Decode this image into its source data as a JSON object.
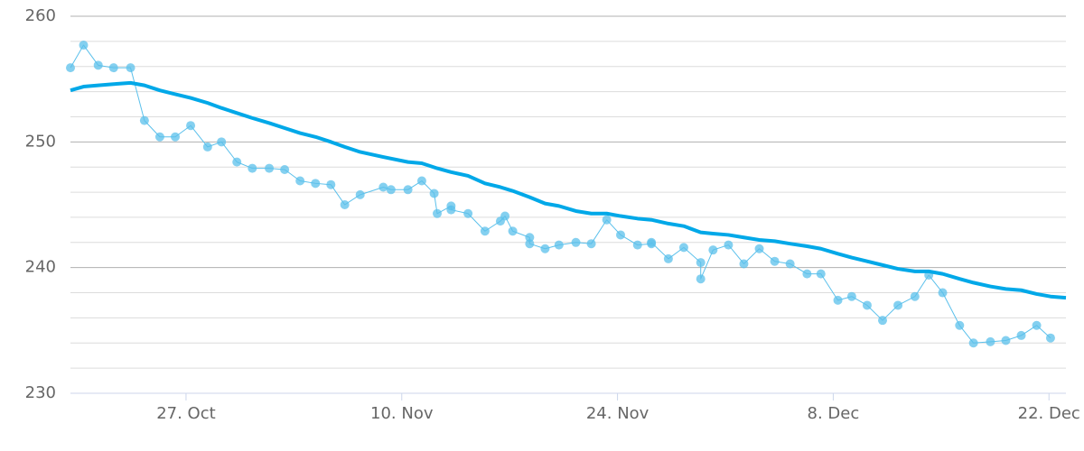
{
  "chart_data": {
    "type": "line",
    "xlim": [
      19.5,
      84.1
    ],
    "xticks": [
      {
        "value": 27,
        "label": "27. Oct"
      },
      {
        "value": 41,
        "label": "10. Nov"
      },
      {
        "value": 55,
        "label": "24. Nov"
      },
      {
        "value": 69,
        "label": "8. Dec"
      },
      {
        "value": 83,
        "label": "22. Dec"
      }
    ],
    "ylim": [
      230,
      260
    ],
    "yticks": [
      230,
      240,
      250,
      260
    ],
    "yminorticks": [
      232,
      234,
      236,
      238,
      242,
      244,
      246,
      248,
      252,
      254,
      256,
      258
    ],
    "grid": true,
    "series": [
      {
        "color": "#5bc0eb",
        "line_width": 1,
        "markers": true,
        "x": [
          19.5,
          20.35,
          21.3,
          22.3,
          23.4,
          24.3,
          25.3,
          26.3,
          27.3,
          28.4,
          29.3,
          30.3,
          31.3,
          32.4,
          33.4,
          34.4,
          35.4,
          36.4,
          37.3,
          38.3,
          39.8,
          40.3,
          41.4,
          42.3,
          43.1,
          43.3,
          44.2,
          44.2,
          45.3,
          46.4,
          47.4,
          47.7,
          48.2,
          49.3,
          49.3,
          50.3,
          51.2,
          52.3,
          53.3,
          54.3,
          55.2,
          56.3,
          57.2,
          57.2,
          58.3,
          59.3,
          60.4,
          60.4,
          61.2,
          62.2,
          63.2,
          64.2,
          65.2,
          66.2,
          67.3,
          68.2,
          69.3,
          70.2,
          71.2,
          72.2,
          73.2,
          74.3,
          75.2,
          76.1,
          77.2,
          78.1,
          79.2,
          80.2,
          81.2,
          82.2,
          83.1
        ],
        "values": [
          255.9,
          257.7,
          256.1,
          255.9,
          255.9,
          251.7,
          250.4,
          250.4,
          251.3,
          249.6,
          250.0,
          248.4,
          247.9,
          247.9,
          247.8,
          246.9,
          246.7,
          246.6,
          245.0,
          245.8,
          246.4,
          246.2,
          246.2,
          246.9,
          245.9,
          244.3,
          244.9,
          244.6,
          244.3,
          242.9,
          243.7,
          244.1,
          242.9,
          242.4,
          241.9,
          241.5,
          241.8,
          242.0,
          241.9,
          243.8,
          242.6,
          241.8,
          241.9,
          242.0,
          240.7,
          241.6,
          240.4,
          239.1,
          241.4,
          241.8,
          240.3,
          241.5,
          240.5,
          240.3,
          239.5,
          239.5,
          237.4,
          237.7,
          237.0,
          235.8,
          237.0,
          237.7,
          239.4,
          238.0,
          235.4,
          234.0,
          234.1,
          234.2,
          234.6,
          235.4,
          234.4
        ]
      },
      {
        "color": "#00a8e8",
        "line_width": 4,
        "markers": false,
        "x": [
          19.5,
          20.35,
          21.3,
          22.3,
          23.4,
          24.3,
          25.3,
          26.3,
          27.3,
          28.4,
          29.3,
          30.3,
          31.3,
          32.4,
          33.4,
          34.4,
          35.4,
          36.4,
          37.3,
          38.3,
          39.8,
          41.4,
          42.3,
          43.3,
          44.2,
          45.3,
          46.4,
          47.4,
          48.2,
          49.3,
          50.3,
          51.2,
          52.3,
          53.3,
          54.3,
          55.2,
          56.3,
          57.2,
          58.3,
          59.3,
          60.4,
          61.2,
          62.2,
          63.2,
          64.2,
          65.2,
          66.2,
          67.3,
          68.2,
          69.3,
          70.2,
          71.2,
          72.2,
          73.2,
          74.3,
          75.2,
          76.1,
          77.2,
          78.1,
          79.2,
          80.2,
          81.2,
          82.2,
          83.1,
          84.1
        ],
        "values": [
          254.1,
          254.4,
          254.5,
          254.6,
          254.7,
          254.5,
          254.1,
          253.8,
          253.5,
          253.1,
          252.7,
          252.3,
          251.9,
          251.5,
          251.1,
          250.7,
          250.4,
          250.0,
          249.6,
          249.2,
          248.8,
          248.4,
          248.3,
          247.9,
          247.6,
          247.3,
          246.7,
          246.4,
          246.1,
          245.6,
          245.1,
          244.9,
          244.5,
          244.3,
          244.3,
          244.1,
          243.9,
          243.8,
          243.5,
          243.3,
          242.8,
          242.7,
          242.6,
          242.4,
          242.2,
          242.1,
          241.9,
          241.7,
          241.5,
          241.1,
          240.8,
          240.5,
          240.2,
          239.9,
          239.7,
          239.7,
          239.5,
          239.1,
          238.8,
          238.5,
          238.3,
          238.2,
          237.9,
          237.7,
          237.6
        ]
      }
    ]
  }
}
